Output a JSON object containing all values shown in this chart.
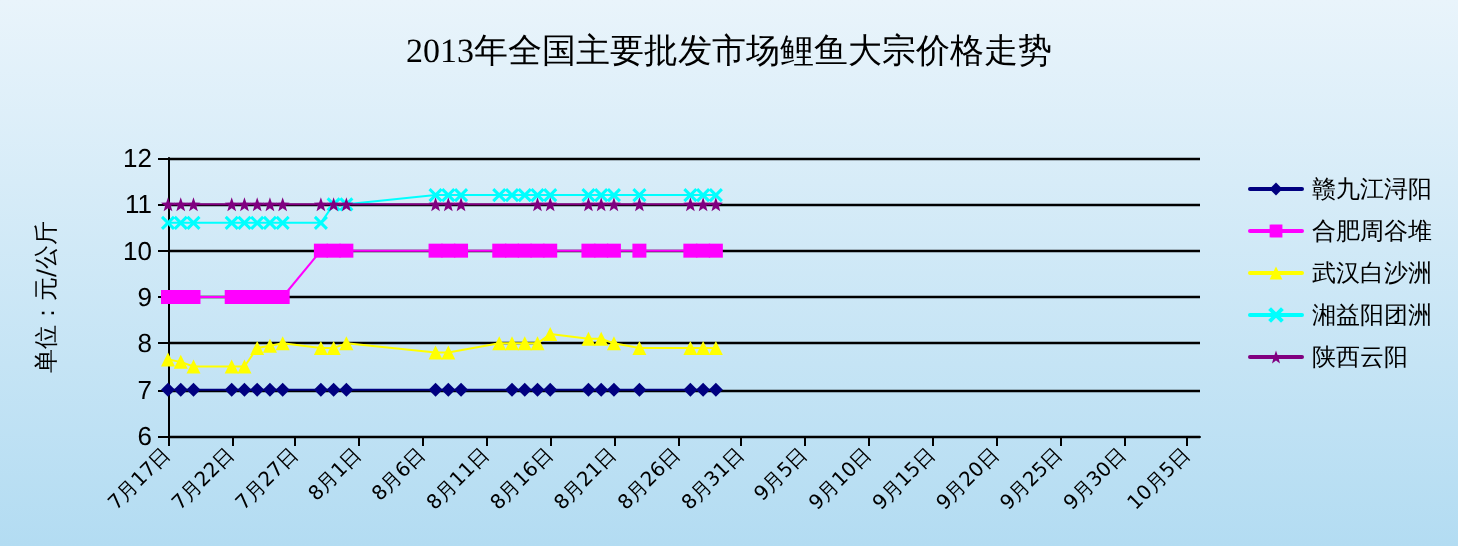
{
  "chart_data": {
    "type": "line",
    "title": "2013年全国主要批发市场鲤鱼大宗价格走势",
    "ylabel": "单位：元/公斤",
    "x": [
      "--07-17",
      "--07-18",
      "--07-19",
      "--07-22",
      "--07-23",
      "--07-24",
      "--07-25",
      "--07-26",
      "--07-29",
      "--07-30",
      "--07-31",
      "--08-07",
      "--08-08",
      "--08-09",
      "--08-12",
      "--08-13",
      "--08-14",
      "--08-15",
      "--08-16",
      "--08-19",
      "--08-20",
      "--08-21",
      "--08-23",
      "--08-27",
      "--08-28",
      "--08-29"
    ],
    "series": [
      {
        "name": "赣九江浔阳",
        "color": "#000080",
        "marker": "diamond",
        "values": [
          7,
          7,
          7,
          7,
          7,
          7,
          7,
          7,
          7,
          7,
          7,
          7,
          7,
          7,
          null,
          7,
          7,
          7,
          7,
          7,
          7,
          7,
          7,
          7,
          7,
          7
        ]
      },
      {
        "name": "合肥周谷堆",
        "color": "#ff00ff",
        "marker": "square",
        "values": [
          9,
          9,
          9,
          9,
          9,
          9,
          9,
          9,
          10,
          10,
          10,
          10,
          10,
          10,
          10,
          10,
          10,
          10,
          10,
          10,
          10,
          10,
          10,
          10,
          10,
          10
        ]
      },
      {
        "name": "武汉白沙洲",
        "color": "#ffff00",
        "marker": "triangle",
        "values": [
          7.65,
          7.6,
          7.5,
          7.5,
          7.5,
          7.9,
          7.95,
          8.0,
          7.9,
          7.9,
          8.0,
          7.8,
          7.8,
          null,
          8.0,
          8.0,
          8.0,
          8.0,
          8.2,
          8.1,
          8.1,
          8.0,
          7.9,
          7.9,
          7.9,
          7.9
        ]
      },
      {
        "name": "湘益阳团洲",
        "color": "#00ffff",
        "marker": "cross",
        "values": [
          10.6,
          10.6,
          10.6,
          10.6,
          10.6,
          10.6,
          10.6,
          10.6,
          10.6,
          11.0,
          11.0,
          11.2,
          11.2,
          11.2,
          11.2,
          11.2,
          11.2,
          11.2,
          11.2,
          11.2,
          11.2,
          11.2,
          11.2,
          11.2,
          11.2,
          11.2
        ]
      },
      {
        "name": "陕西云阳",
        "color": "#800080",
        "marker": "star",
        "values": [
          11,
          11,
          11,
          11,
          11,
          11,
          11,
          11,
          11,
          11,
          11,
          11,
          11,
          11,
          null,
          null,
          null,
          11,
          11,
          11,
          11,
          11,
          11,
          11,
          11,
          11
        ]
      }
    ],
    "xlim": [
      "--07-17",
      "--10-06"
    ],
    "xticks": [
      {
        "value": "--07-17",
        "label": "7月17日"
      },
      {
        "value": "--07-22",
        "label": "7月22日"
      },
      {
        "value": "--07-27",
        "label": "7月27日"
      },
      {
        "value": "--08-01",
        "label": "8月1日"
      },
      {
        "value": "--08-06",
        "label": "8月6日"
      },
      {
        "value": "--08-11",
        "label": "8月11日"
      },
      {
        "value": "--08-16",
        "label": "8月16日"
      },
      {
        "value": "--08-21",
        "label": "8月21日"
      },
      {
        "value": "--08-26",
        "label": "8月26日"
      },
      {
        "value": "--08-31",
        "label": "8月31日"
      },
      {
        "value": "--09-05",
        "label": "9月5日"
      },
      {
        "value": "--09-10",
        "label": "9月10日"
      },
      {
        "value": "--09-15",
        "label": "9月15日"
      },
      {
        "value": "--09-20",
        "label": "9月20日"
      },
      {
        "value": "--09-25",
        "label": "9月25日"
      },
      {
        "value": "--09-30",
        "label": "9月30日"
      },
      {
        "value": "--10-05",
        "label": "10月5日"
      }
    ],
    "ylim": [
      6,
      12
    ],
    "yticks": [
      6,
      7,
      8,
      9,
      10,
      11,
      12
    ],
    "grid": "y",
    "legend": "right",
    "line_style": "solid"
  }
}
